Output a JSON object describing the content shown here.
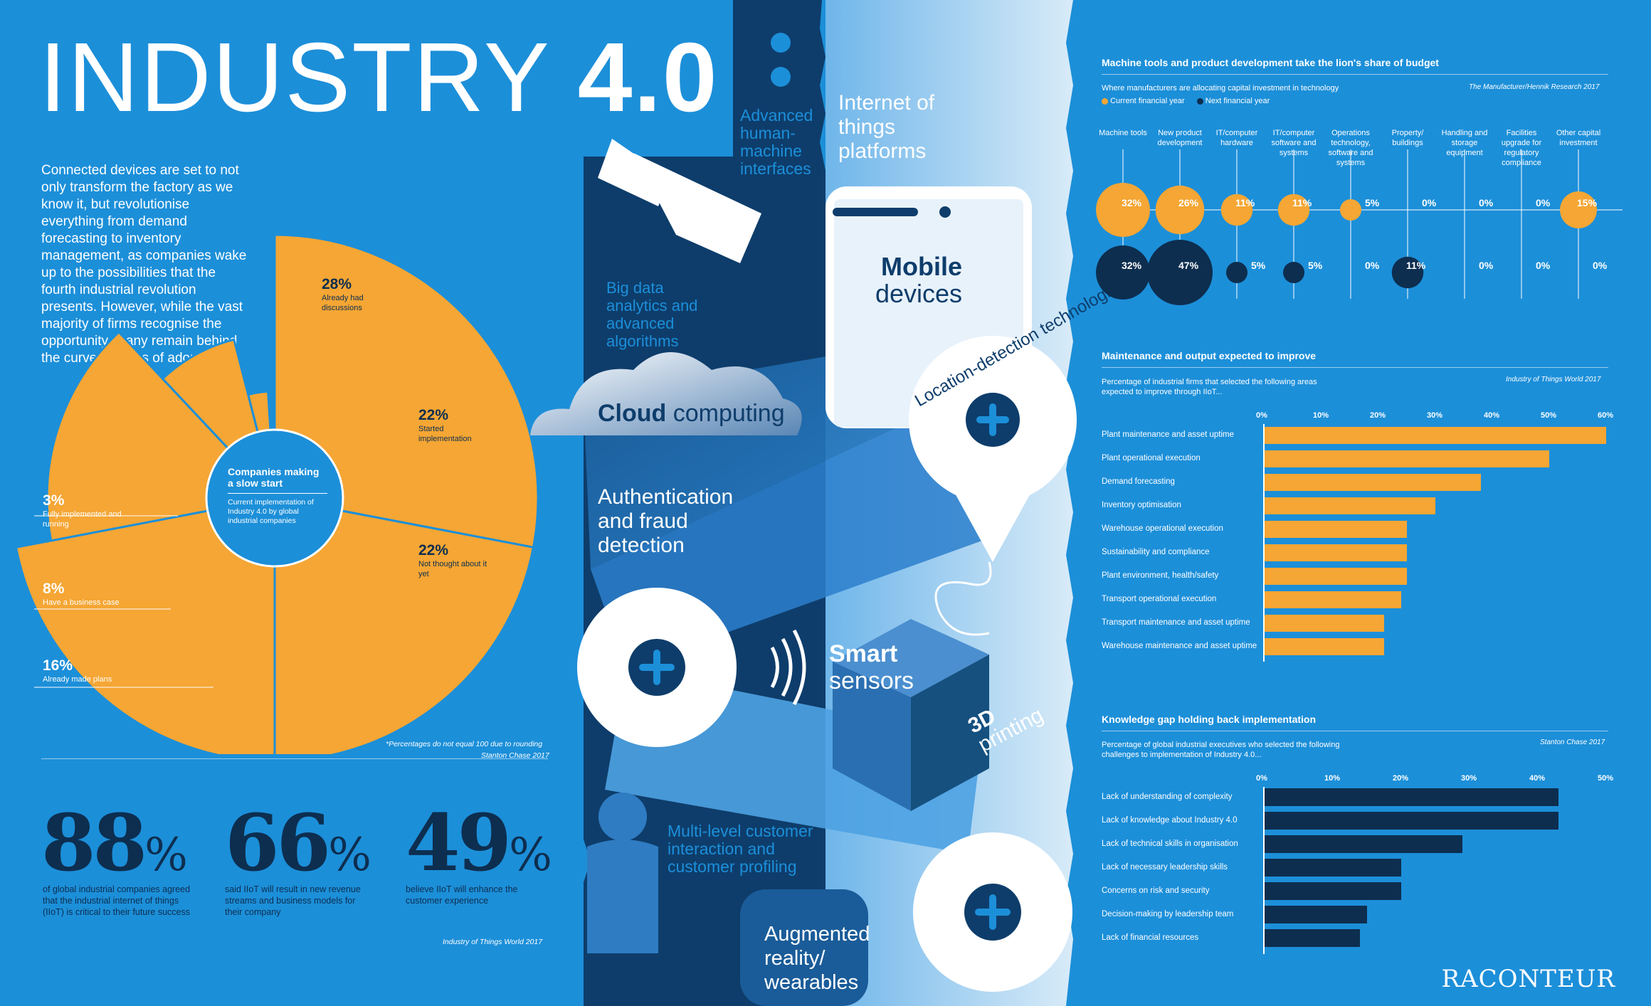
{
  "title": {
    "thin": "INDUSTRY ",
    "bold": "4.0"
  },
  "intro": "Connected devices are set to not only transform the factory as we know it, but revolutionise everything from demand forecasting to inventory management, as companies wake up to the possibilities that the fourth industrial revolution presents. However, while the vast majority of firms recognise the opportunity, many remain behind the curve in terms of adoption",
  "colors": {
    "bg": "#1c8fd9",
    "orange": "#f5a634",
    "navy": "#0d2e4f",
    "white": "#ffffff"
  },
  "center_tech": {
    "advanced_hmi": "Advanced human- machine interfaces",
    "iot": "Internet of things platforms",
    "big_data": "Big data analytics and advanced algorithms",
    "mobile_bold": "Mobile",
    "mobile_rest": "devices",
    "cloud_bold": "Cloud",
    "cloud_rest": " computing",
    "location": "Location-detection technologies",
    "auth": "Authentication and fraud detection",
    "smart_bold": "Smart",
    "smart_rest": "sensors",
    "printing_bold": "3D",
    "printing_rest": "printing",
    "multi": "Multi-level customer interaction and customer profiling",
    "ar": "Augmented reality/ wearables"
  },
  "stats": [
    {
      "value": "88",
      "unit": "%",
      "desc": "of global industrial companies agreed that the industrial internet of things (IIoT) is critical to their future success"
    },
    {
      "value": "66",
      "unit": "%",
      "desc": "said IIoT will result in new revenue streams and business models for their company"
    },
    {
      "value": "49",
      "unit": "%",
      "desc": "believe IIoT will enhance the customer experience"
    }
  ],
  "stats_source": "Industry of Things World 2017",
  "brand": "RACONTEUR",
  "chart_data": [
    {
      "type": "pie",
      "title": "Companies making a slow start",
      "subtitle": "Current implementation of Industry 4.0 by global industrial companies",
      "note": "*Percentages do not equal 100 due to rounding",
      "source": "Stanton Chase 2017",
      "slices": [
        {
          "label": "Already had discussions",
          "value": 28
        },
        {
          "label": "Started implementation",
          "value": 22
        },
        {
          "label": "Not thought about it yet",
          "value": 22
        },
        {
          "label": "Already made plans",
          "value": 16
        },
        {
          "label": "Have a business case",
          "value": 8
        },
        {
          "label": "Fully implemented and running",
          "value": 3
        }
      ]
    },
    {
      "type": "scatter",
      "title": "Machine tools and product development take the lion's share of budget",
      "subtitle": "Where manufacturers are allocating capital investment in technology",
      "source": "The Manufacturer/Hennik Research 2017",
      "categories": [
        "Machine tools",
        "New product development",
        "IT/computer hardware",
        "IT/computer software and systems",
        "Operations technology, software and systems",
        "Property/ buildings",
        "Handling and storage equipment",
        "Facilities upgrade for regulatory compliance",
        "Other capital investment"
      ],
      "series": [
        {
          "name": "Current financial year",
          "color": "#f5a634",
          "values": [
            32,
            26,
            11,
            11,
            5,
            0,
            0,
            0,
            15
          ]
        },
        {
          "name": "Next financial year",
          "color": "#0d2e4f",
          "values": [
            32,
            47,
            5,
            5,
            0,
            11,
            0,
            0,
            0
          ]
        }
      ]
    },
    {
      "type": "bar",
      "title": "Maintenance and output expected to improve",
      "subtitle": "Percentage of industrial firms that selected the following areas expected to improve through IIoT...",
      "source": "Industry of Things World 2017",
      "categories": [
        "Plant maintenance and asset uptime",
        "Plant operational execution",
        "Demand forecasting",
        "Inventory optimisation",
        "Warehouse operational execution",
        "Sustainability and compliance",
        "Plant environment, health/safety",
        "Transport operational execution",
        "Transport maintenance and asset uptime",
        "Warehouse maintenance and asset uptime"
      ],
      "values": [
        60,
        50,
        38,
        30,
        25,
        25,
        25,
        24,
        21,
        21
      ],
      "ticks": [
        "0%",
        "10%",
        "20%",
        "30%",
        "40%",
        "50%",
        "60%"
      ],
      "xlim": [
        0,
        60
      ]
    },
    {
      "type": "bar",
      "title": "Knowledge gap holding back implementation",
      "subtitle": "Percentage of global industrial executives who selected the following challenges to implementation of Industry 4.0...",
      "source": "Stanton Chase 2017",
      "categories": [
        "Lack of understanding of complexity",
        "Lack of knowledge about Industry 4.0",
        "Lack of technical skills in organisation",
        "Lack of necessary leadership skills",
        "Concerns on risk and security",
        "Decision-making by leadership team",
        "Lack of financial resources"
      ],
      "values": [
        43,
        43,
        29,
        20,
        20,
        15,
        14
      ],
      "ticks": [
        "0%",
        "10%",
        "20%",
        "30%",
        "40%",
        "50%"
      ],
      "xlim": [
        0,
        50
      ]
    }
  ]
}
